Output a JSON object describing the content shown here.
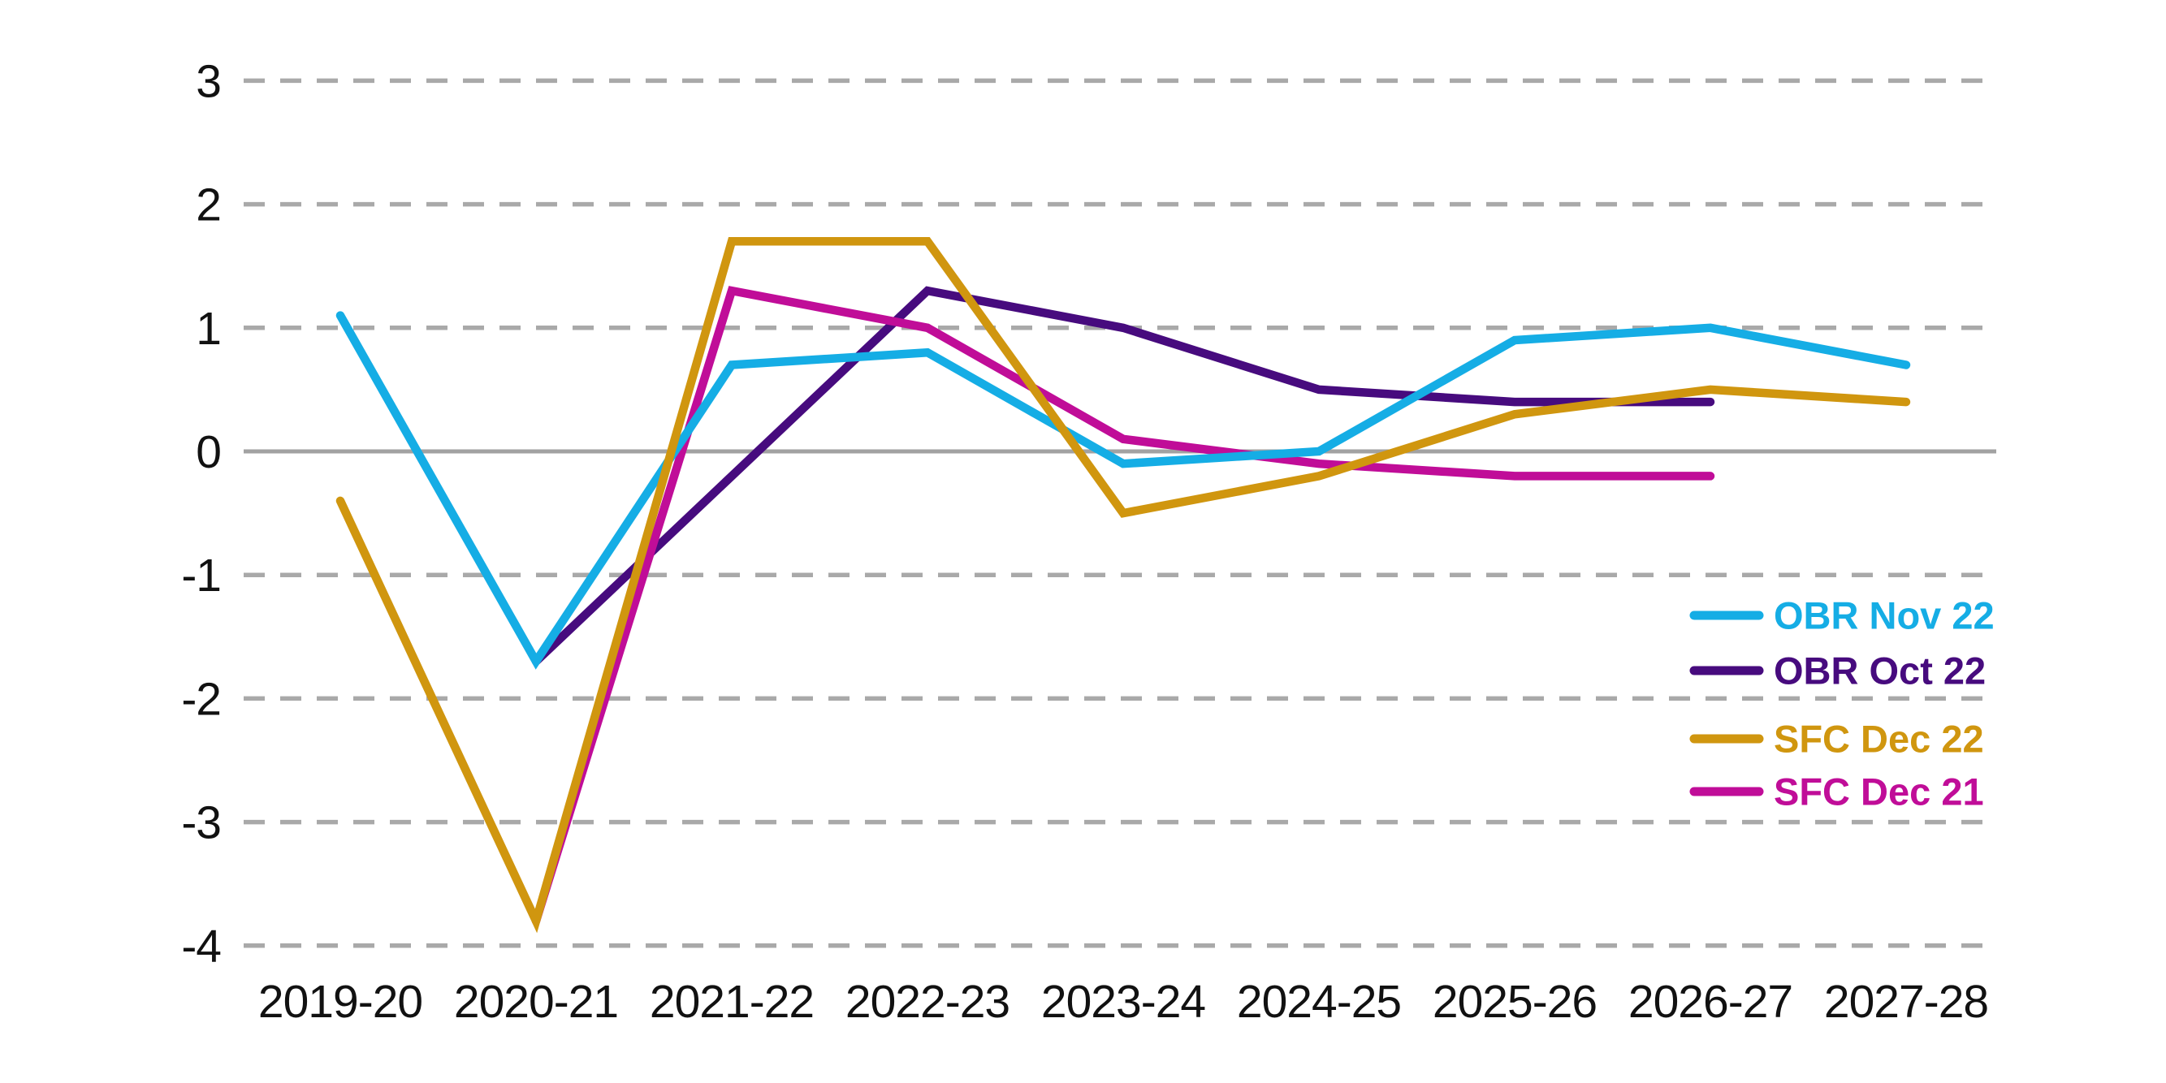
{
  "chart_data": {
    "type": "line",
    "title": "",
    "xlabel": "",
    "ylabel": "",
    "categories": [
      "2019-20",
      "2020-21",
      "2021-22",
      "2022-23",
      "2023-24",
      "2024-25",
      "2025-26",
      "2026-27",
      "2027-28"
    ],
    "series": [
      {
        "name": "OBR Nov 22",
        "color": "#15ade5",
        "values": [
          1.1,
          -1.7,
          0.7,
          0.8,
          -0.1,
          0,
          0.9,
          1,
          0.7
        ]
      },
      {
        "name": "OBR Oct 22",
        "color": "#470b7e",
        "values": [
          null,
          -1.7,
          -0.2,
          1.3,
          1,
          0.5,
          0.4,
          0.4,
          null
        ]
      },
      {
        "name": "SFC Dec 22",
        "color": "#d0960f",
        "values": [
          -0.4,
          -3.8,
          1.7,
          1.7,
          -0.5,
          -0.2,
          0.3,
          0.5,
          0.4
        ]
      },
      {
        "name": "SFC Dec 21",
        "color": "#c00d98",
        "values": [
          null,
          -3.8,
          1.3,
          1,
          0.1,
          -0.1,
          -0.2,
          -0.2,
          null
        ]
      }
    ],
    "ylim": [
      -4,
      3
    ],
    "yticks": [
      3,
      2,
      1,
      0,
      -1,
      -2,
      -3,
      -4
    ],
    "grid": "horizontal-dashed",
    "zero_line": "solid",
    "legend_position": "right-middle",
    "legend_order": [
      "OBR Nov 22",
      "OBR Oct 22",
      "SFC Dec 22",
      "SFC Dec 21"
    ]
  },
  "colors": {
    "background": "#ffffff",
    "gridline": "#a9a9a9",
    "zero_line": "#a2a2a2",
    "tick_text": "#111111"
  }
}
